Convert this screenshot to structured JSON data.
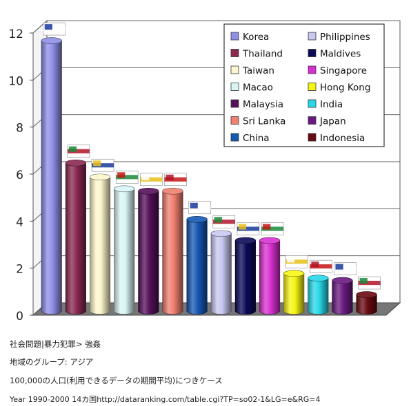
{
  "chart_data": {
    "type": "bar",
    "ylim": [
      0,
      12
    ],
    "yticks": [
      "0",
      "2",
      "4",
      "6",
      "8",
      "10",
      "12"
    ],
    "grid": true,
    "legend_position": "top-right",
    "series": [
      {
        "name": "Korea",
        "value": 11.5,
        "color": "#8f8fe8"
      },
      {
        "name": "Thailand",
        "value": 6.3,
        "color": "#8a2850"
      },
      {
        "name": "Taiwan",
        "value": 5.7,
        "color": "#fdf6cc"
      },
      {
        "name": "Macao",
        "value": 5.2,
        "color": "#d8f6f6"
      },
      {
        "name": "Malaysia",
        "value": 5.1,
        "color": "#55105a"
      },
      {
        "name": "Sri Lanka",
        "value": 5.1,
        "color": "#f08070"
      },
      {
        "name": "China",
        "value": 3.9,
        "color": "#1458b4"
      },
      {
        "name": "Philippines",
        "value": 3.3,
        "color": "#c8c8f0"
      },
      {
        "name": "Maldives",
        "value": 3.0,
        "color": "#0a0a58"
      },
      {
        "name": "Singapore",
        "value": 3.0,
        "color": "#d830d0"
      },
      {
        "name": "Hong Kong",
        "value": 1.6,
        "color": "#f6f614"
      },
      {
        "name": "India",
        "value": 1.4,
        "color": "#28d8e8"
      },
      {
        "name": "Japan",
        "value": 1.3,
        "color": "#6a1a80"
      },
      {
        "name": "Indonesia",
        "value": 0.7,
        "color": "#6a0a10"
      }
    ],
    "legend_order": [
      "Korea",
      "Philippines",
      "Thailand",
      "Maldives",
      "Taiwan",
      "Singapore",
      "Macao",
      "Hong Kong",
      "Malaysia",
      "India",
      "Sri Lanka",
      "Japan",
      "China",
      "Indonesia"
    ]
  },
  "captions": [
    "社会問題|暴力犯罪> 強姦",
    "地域のグループ: アジア",
    "100,000の人口(利用できるデータの期間平均)につきケース",
    "Year 1990-2000   14カ国http://dataranking.com/table.cgi?TP=so02-1&LG=e&RG=4"
  ]
}
